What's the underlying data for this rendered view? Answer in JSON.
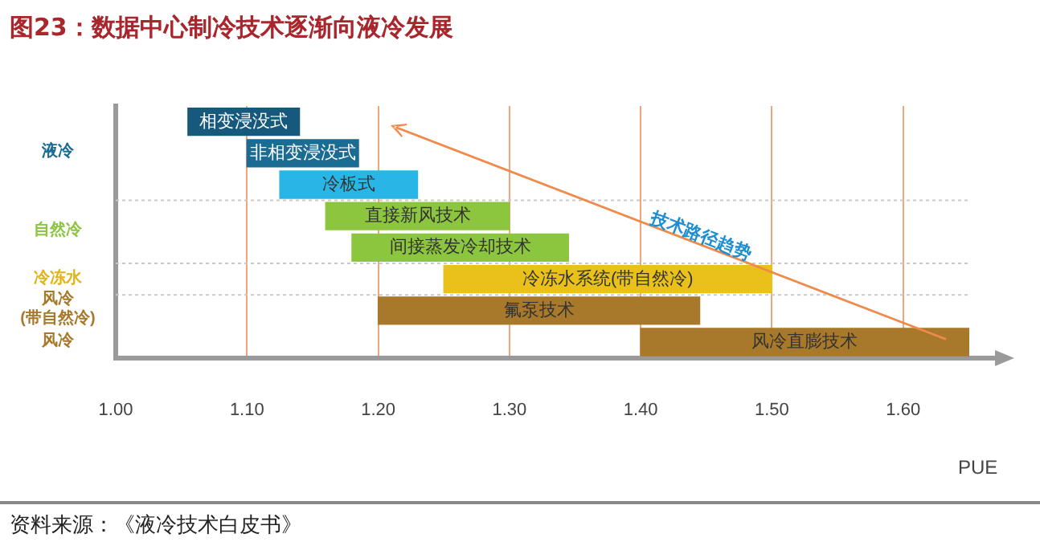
{
  "chart_data": {
    "type": "bar",
    "orientation": "horizontal",
    "title": "图23：数据中心制冷技术逐渐向液冷发展",
    "xlabel": "PUE",
    "categories": [
      "相变浸没式",
      "非相变浸没式",
      "冷板式",
      "直接新风技术",
      "间接蒸发冷却技术",
      "冷冻水系统(带自然冷)",
      "氟泵技术",
      "风冷直膨技术"
    ],
    "base": [
      1.055,
      1.1,
      1.125,
      1.16,
      1.18,
      1.25,
      1.2,
      1.4
    ],
    "values": [
      0.085,
      0.085,
      0.105,
      0.14,
      0.165,
      0.25,
      0.245,
      0.25
    ],
    "colors": [
      "#17597d",
      "#1b6c93",
      "#29b5e6",
      "#8cc63f",
      "#8cc63f",
      "#eac11b",
      "#a8792b",
      "#a8792b"
    ],
    "xlim": [
      1.0,
      1.67
    ],
    "xticks": [
      {
        "value": 1.0,
        "label": "1.00"
      },
      {
        "value": 1.1,
        "label": "1.10"
      },
      {
        "value": 1.2,
        "label": "1.20"
      },
      {
        "value": 1.3,
        "label": "1.30"
      },
      {
        "value": 1.4,
        "label": "1.40"
      },
      {
        "value": 1.5,
        "label": "1.50"
      },
      {
        "value": 1.6,
        "label": "1.60"
      }
    ],
    "grid": "x",
    "annotations": [
      "液冷",
      "自然冷",
      "冷冻水",
      "风冷\n(带自然冷)",
      "风冷",
      "技术路径趋势",
      "资料来源：《液冷技术白皮书》"
    ]
  }
}
